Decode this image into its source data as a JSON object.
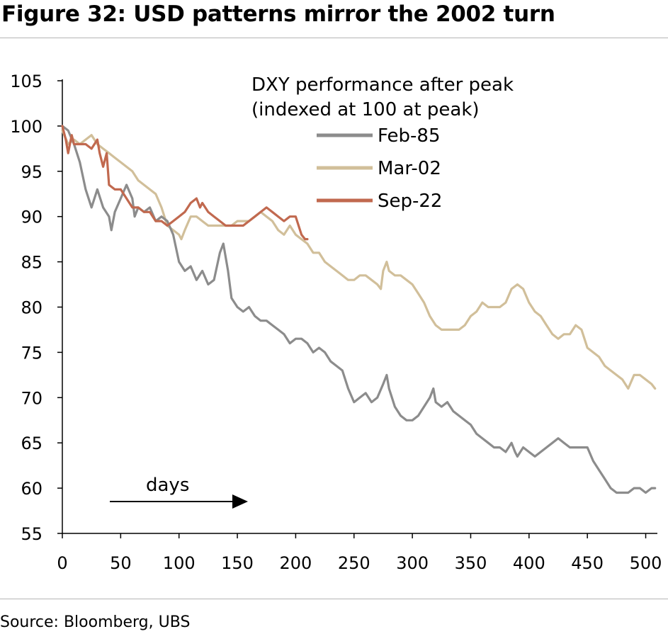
{
  "title": "Figure 32: USD patterns mirror the 2002 turn",
  "source": "Source: Bloomberg, UBS",
  "chart_data": {
    "type": "line",
    "title": "Figure 32: USD patterns mirror the 2002 turn",
    "annotation_lines": [
      "DXY performance after peak",
      "(indexed at 100 at peak)"
    ],
    "x_annotation": "days",
    "xlim": [
      0,
      510
    ],
    "ylim": [
      55,
      105
    ],
    "xticks": [
      0,
      50,
      100,
      150,
      200,
      250,
      300,
      350,
      400,
      450,
      500
    ],
    "yticks": [
      55,
      60,
      65,
      70,
      75,
      80,
      85,
      90,
      95,
      100,
      105
    ],
    "grid": false,
    "legend_position": "top-right",
    "series": [
      {
        "name": "Feb-85",
        "color": "#8c8c8c",
        "points": [
          [
            0,
            100
          ],
          [
            5,
            99.5
          ],
          [
            10,
            98
          ],
          [
            15,
            96
          ],
          [
            20,
            93
          ],
          [
            25,
            91
          ],
          [
            30,
            93
          ],
          [
            35,
            91
          ],
          [
            40,
            90
          ],
          [
            42,
            88.5
          ],
          [
            45,
            90.5
          ],
          [
            50,
            92
          ],
          [
            55,
            93.5
          ],
          [
            60,
            92
          ],
          [
            62,
            90
          ],
          [
            65,
            91
          ],
          [
            70,
            90.5
          ],
          [
            75,
            91
          ],
          [
            80,
            89.5
          ],
          [
            85,
            90
          ],
          [
            90,
            89.5
          ],
          [
            95,
            88
          ],
          [
            100,
            85
          ],
          [
            105,
            84
          ],
          [
            110,
            84.5
          ],
          [
            115,
            83
          ],
          [
            120,
            84
          ],
          [
            125,
            82.5
          ],
          [
            130,
            83
          ],
          [
            135,
            86
          ],
          [
            138,
            87
          ],
          [
            142,
            84
          ],
          [
            145,
            81
          ],
          [
            150,
            80
          ],
          [
            155,
            79.5
          ],
          [
            160,
            80
          ],
          [
            165,
            79
          ],
          [
            170,
            78.5
          ],
          [
            175,
            78.5
          ],
          [
            180,
            78
          ],
          [
            185,
            77.5
          ],
          [
            190,
            77
          ],
          [
            195,
            76
          ],
          [
            200,
            76.5
          ],
          [
            205,
            76.5
          ],
          [
            210,
            76
          ],
          [
            215,
            75
          ],
          [
            220,
            75.5
          ],
          [
            225,
            75
          ],
          [
            230,
            74
          ],
          [
            235,
            73.5
          ],
          [
            240,
            73
          ],
          [
            245,
            71
          ],
          [
            250,
            69.5
          ],
          [
            255,
            70
          ],
          [
            260,
            70.5
          ],
          [
            265,
            69.5
          ],
          [
            270,
            70
          ],
          [
            275,
            71.5
          ],
          [
            278,
            72.5
          ],
          [
            280,
            71
          ],
          [
            285,
            69
          ],
          [
            290,
            68
          ],
          [
            295,
            67.5
          ],
          [
            300,
            67.5
          ],
          [
            305,
            68
          ],
          [
            310,
            69
          ],
          [
            315,
            70
          ],
          [
            318,
            71
          ],
          [
            320,
            69.5
          ],
          [
            325,
            69
          ],
          [
            330,
            69.5
          ],
          [
            335,
            68.5
          ],
          [
            340,
            68
          ],
          [
            345,
            67.5
          ],
          [
            350,
            67
          ],
          [
            355,
            66
          ],
          [
            360,
            65.5
          ],
          [
            365,
            65
          ],
          [
            370,
            64.5
          ],
          [
            375,
            64.5
          ],
          [
            380,
            64
          ],
          [
            385,
            65
          ],
          [
            388,
            64
          ],
          [
            390,
            63.5
          ],
          [
            395,
            64.5
          ],
          [
            400,
            64
          ],
          [
            405,
            63.5
          ],
          [
            410,
            64
          ],
          [
            415,
            64.5
          ],
          [
            420,
            65
          ],
          [
            425,
            65.5
          ],
          [
            430,
            65
          ],
          [
            435,
            64.5
          ],
          [
            440,
            64.5
          ],
          [
            445,
            64.5
          ],
          [
            450,
            64.5
          ],
          [
            455,
            63
          ],
          [
            460,
            62
          ],
          [
            465,
            61
          ],
          [
            470,
            60
          ],
          [
            475,
            59.5
          ],
          [
            480,
            59.5
          ],
          [
            485,
            59.5
          ],
          [
            490,
            60
          ],
          [
            495,
            60
          ],
          [
            500,
            59.5
          ],
          [
            505,
            60
          ],
          [
            508,
            60
          ]
        ]
      },
      {
        "name": "Mar-02",
        "color": "#d1bf9a",
        "points": [
          [
            0,
            99.5
          ],
          [
            5,
            98
          ],
          [
            10,
            98.5
          ],
          [
            15,
            98
          ],
          [
            20,
            98.5
          ],
          [
            25,
            99
          ],
          [
            30,
            98
          ],
          [
            35,
            97.5
          ],
          [
            40,
            97
          ],
          [
            45,
            96.5
          ],
          [
            50,
            96
          ],
          [
            55,
            95.5
          ],
          [
            60,
            95
          ],
          [
            65,
            94
          ],
          [
            70,
            93.5
          ],
          [
            75,
            93
          ],
          [
            80,
            92.5
          ],
          [
            85,
            91
          ],
          [
            90,
            89
          ],
          [
            95,
            88.5
          ],
          [
            100,
            88
          ],
          [
            102,
            87.5
          ],
          [
            105,
            88.5
          ],
          [
            110,
            90
          ],
          [
            115,
            90
          ],
          [
            120,
            89.5
          ],
          [
            125,
            89
          ],
          [
            130,
            89
          ],
          [
            135,
            89
          ],
          [
            140,
            89
          ],
          [
            145,
            89
          ],
          [
            150,
            89.5
          ],
          [
            155,
            89.5
          ],
          [
            160,
            89.5
          ],
          [
            165,
            90
          ],
          [
            170,
            90.5
          ],
          [
            175,
            90
          ],
          [
            180,
            89.5
          ],
          [
            185,
            88.5
          ],
          [
            190,
            88
          ],
          [
            195,
            89
          ],
          [
            200,
            88
          ],
          [
            205,
            87.5
          ],
          [
            210,
            87
          ],
          [
            215,
            86
          ],
          [
            220,
            86
          ],
          [
            225,
            85
          ],
          [
            230,
            84.5
          ],
          [
            235,
            84
          ],
          [
            240,
            83.5
          ],
          [
            245,
            83
          ],
          [
            250,
            83
          ],
          [
            255,
            83.5
          ],
          [
            260,
            83.5
          ],
          [
            265,
            83
          ],
          [
            270,
            82.5
          ],
          [
            273,
            82
          ],
          [
            275,
            84
          ],
          [
            278,
            85
          ],
          [
            280,
            84
          ],
          [
            285,
            83.5
          ],
          [
            290,
            83.5
          ],
          [
            295,
            83
          ],
          [
            300,
            82.5
          ],
          [
            305,
            81.5
          ],
          [
            310,
            80.5
          ],
          [
            315,
            79
          ],
          [
            320,
            78
          ],
          [
            325,
            77.5
          ],
          [
            330,
            77.5
          ],
          [
            335,
            77.5
          ],
          [
            340,
            77.5
          ],
          [
            345,
            78
          ],
          [
            350,
            79
          ],
          [
            355,
            79.5
          ],
          [
            360,
            80.5
          ],
          [
            365,
            80
          ],
          [
            370,
            80
          ],
          [
            375,
            80
          ],
          [
            380,
            80.5
          ],
          [
            385,
            82
          ],
          [
            390,
            82.5
          ],
          [
            395,
            82
          ],
          [
            400,
            80.5
          ],
          [
            405,
            79.5
          ],
          [
            410,
            79
          ],
          [
            415,
            78
          ],
          [
            420,
            77
          ],
          [
            425,
            76.5
          ],
          [
            430,
            77
          ],
          [
            435,
            77
          ],
          [
            440,
            78
          ],
          [
            445,
            77.5
          ],
          [
            450,
            75.5
          ],
          [
            455,
            75
          ],
          [
            460,
            74.5
          ],
          [
            465,
            73.5
          ],
          [
            470,
            73
          ],
          [
            475,
            72.5
          ],
          [
            480,
            72
          ],
          [
            485,
            71
          ],
          [
            490,
            72.5
          ],
          [
            495,
            72.5
          ],
          [
            500,
            72
          ],
          [
            505,
            71.5
          ],
          [
            508,
            71
          ]
        ]
      },
      {
        "name": "Sep-22",
        "color": "#c1694f",
        "points": [
          [
            0,
            100
          ],
          [
            3,
            98.5
          ],
          [
            5,
            97
          ],
          [
            8,
            99
          ],
          [
            10,
            98
          ],
          [
            15,
            98
          ],
          [
            20,
            98
          ],
          [
            25,
            97.5
          ],
          [
            30,
            98.5
          ],
          [
            32,
            97
          ],
          [
            35,
            95.5
          ],
          [
            38,
            97
          ],
          [
            40,
            93.5
          ],
          [
            45,
            93
          ],
          [
            50,
            93
          ],
          [
            55,
            92
          ],
          [
            60,
            91
          ],
          [
            65,
            91
          ],
          [
            70,
            90.5
          ],
          [
            75,
            90.5
          ],
          [
            80,
            89.5
          ],
          [
            85,
            89.5
          ],
          [
            90,
            89
          ],
          [
            95,
            89.5
          ],
          [
            100,
            90
          ],
          [
            105,
            90.5
          ],
          [
            110,
            91.5
          ],
          [
            115,
            92
          ],
          [
            118,
            91
          ],
          [
            120,
            91.5
          ],
          [
            125,
            90.5
          ],
          [
            130,
            90
          ],
          [
            135,
            89.5
          ],
          [
            140,
            89
          ],
          [
            145,
            89
          ],
          [
            150,
            89
          ],
          [
            155,
            89
          ],
          [
            160,
            89.5
          ],
          [
            165,
            90
          ],
          [
            170,
            90.5
          ],
          [
            175,
            91
          ],
          [
            180,
            90.5
          ],
          [
            185,
            90
          ],
          [
            190,
            89.5
          ],
          [
            195,
            90
          ],
          [
            200,
            90
          ],
          [
            205,
            88
          ],
          [
            208,
            87.5
          ],
          [
            210,
            87.5
          ]
        ]
      }
    ]
  }
}
